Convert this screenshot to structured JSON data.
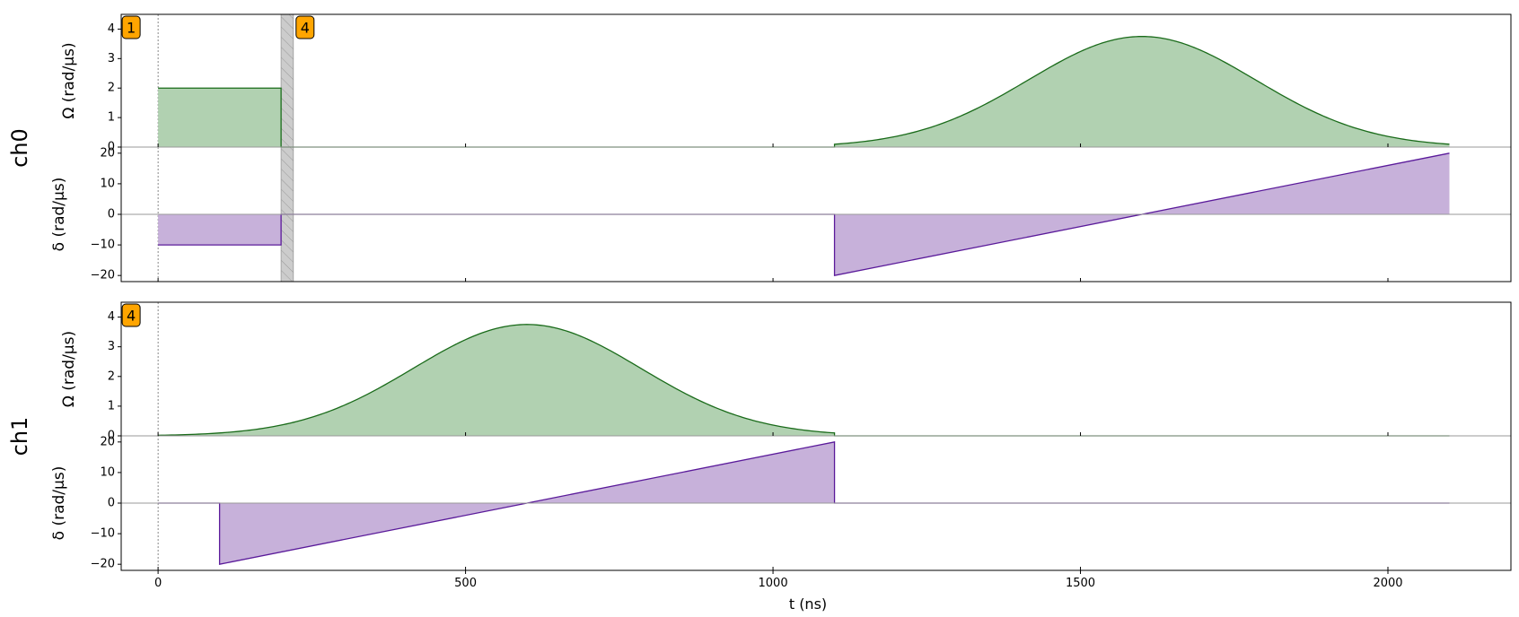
{
  "figure": {
    "xlabel": "t (ns)",
    "omega_label": "Ω (rad/µs)",
    "delta_label": "δ (rad/µs)"
  },
  "colors": {
    "omega_line": "#1a6b1a",
    "omega_fill": "#b1d1b1",
    "delta_line": "#5a1a9a",
    "delta_fill": "#c7b1da",
    "marker_fill": "#ffa500",
    "hatch_fill": "#cccccc",
    "zero_line": "#999999"
  },
  "chart_data": [
    {
      "type": "area",
      "channel": "ch0",
      "xlim": [
        -60,
        2200
      ],
      "x_ticks": [
        0,
        500,
        1000,
        1500,
        2000
      ],
      "show_tick_labels": false,
      "omega": {
        "ylabel": "Ω (rad/µs)",
        "ylim": [
          0,
          4.5
        ],
        "y_ticks": [
          0,
          1,
          2,
          3,
          4
        ],
        "segments": [
          {
            "kind": "constant",
            "t_start": 0,
            "t_end": 200,
            "value": 2
          },
          {
            "kind": "constant",
            "t_start": 200,
            "t_end": 1100,
            "value": 0
          },
          {
            "kind": "gaussian",
            "t_start": 1100,
            "t_end": 2100,
            "peak": 3.75,
            "center": 1600,
            "sigma": 185
          }
        ]
      },
      "delta": {
        "ylabel": "δ (rad/µs)",
        "ylim": [
          -22,
          22
        ],
        "y_ticks": [
          -20,
          -10,
          0,
          10,
          20
        ],
        "segments": [
          {
            "kind": "constant",
            "t_start": 0,
            "t_end": 200,
            "value": -10
          },
          {
            "kind": "constant",
            "t_start": 200,
            "t_end": 1100,
            "value": 0
          },
          {
            "kind": "ramp",
            "t_start": 1100,
            "t_end": 2100,
            "from": -20,
            "to": 20
          }
        ]
      },
      "hatched_region": [
        200,
        220
      ],
      "markers": [
        {
          "label": "1",
          "t": 0
        },
        {
          "label": "4",
          "t": 220
        }
      ]
    },
    {
      "type": "area",
      "channel": "ch1",
      "xlim": [
        -60,
        2200
      ],
      "x_ticks": [
        0,
        500,
        1000,
        1500,
        2000
      ],
      "x_tick_labels": [
        "0",
        "500",
        "1000",
        "1500",
        "2000"
      ],
      "show_tick_labels": true,
      "xlabel": "t (ns)",
      "omega": {
        "ylabel": "Ω (rad/µs)",
        "ylim": [
          0,
          4.5
        ],
        "y_ticks": [
          0,
          1,
          2,
          3,
          4
        ],
        "segments": [
          {
            "kind": "gaussian",
            "t_start": 0,
            "t_end": 1100,
            "peak": 3.75,
            "center": 600,
            "sigma": 185
          },
          {
            "kind": "constant",
            "t_start": 1100,
            "t_end": 2100,
            "value": 0
          }
        ]
      },
      "delta": {
        "ylabel": "δ (rad/µs)",
        "ylim": [
          -22,
          22
        ],
        "y_ticks": [
          -20,
          -10,
          0,
          10,
          20
        ],
        "segments": [
          {
            "kind": "constant",
            "t_start": 0,
            "t_end": 100,
            "value": 0
          },
          {
            "kind": "ramp",
            "t_start": 100,
            "t_end": 1100,
            "from": -20,
            "to": 20
          },
          {
            "kind": "constant",
            "t_start": 1100,
            "t_end": 2100,
            "value": 0
          }
        ]
      },
      "hatched_region": null,
      "markers": [
        {
          "label": "4",
          "t": 0
        }
      ]
    }
  ]
}
